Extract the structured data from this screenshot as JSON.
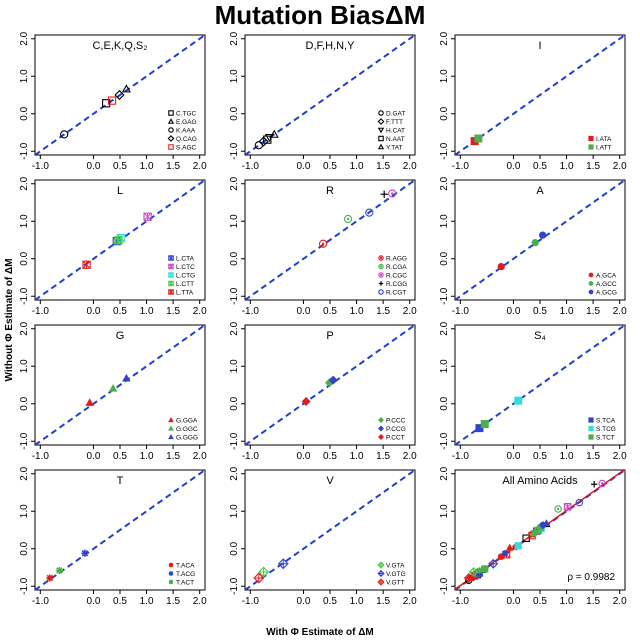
{
  "figure": {
    "title": "Mutation BiasΔM",
    "xlabel": "With Φ Estimate of ΔM",
    "ylabel": "Without Φ Estimate of ΔM"
  },
  "colors": {
    "diagonal": "#1f3fd0",
    "regression": "#e01010"
  },
  "chart_data": [
    {
      "type": "scatter",
      "title": "C,E,K,Q,S₂",
      "xlim": [
        -1.1,
        2.1
      ],
      "ylim": [
        -1.1,
        2.1
      ],
      "xticks": [
        "-1.0",
        "0.0",
        "0.5",
        "1.0",
        "1.5",
        "2.0"
      ],
      "yticks": [
        "-1.0",
        "0.0",
        "1.0",
        "2.0"
      ],
      "series": [
        {
          "name": "C.TGC",
          "marker": "square",
          "color": "#000000",
          "x": [
            0.24
          ],
          "y": [
            0.28
          ]
        },
        {
          "name": "E.GAG",
          "marker": "triangle",
          "color": "#000000",
          "x": [
            0.62
          ],
          "y": [
            0.66
          ]
        },
        {
          "name": "K.AAA",
          "marker": "circle",
          "color": "#000000",
          "x": [
            -0.55
          ],
          "y": [
            -0.55
          ]
        },
        {
          "name": "Q.CAG",
          "marker": "diamond",
          "color": "#000000",
          "x": [
            0.49
          ],
          "y": [
            0.5
          ]
        },
        {
          "name": "S.AGC",
          "marker": "square",
          "color": "#e41a1c",
          "x": [
            0.35
          ],
          "y": [
            0.35
          ]
        }
      ]
    },
    {
      "type": "scatter",
      "title": "D,F,H,N,Y",
      "xlim": [
        -1.1,
        2.1
      ],
      "ylim": [
        -1.1,
        2.1
      ],
      "xticks": [
        "-1.0",
        "0.0",
        "0.5",
        "1.0",
        "1.5",
        "2.0"
      ],
      "yticks": [
        "-1.0",
        "0.0",
        "1.0",
        "2.0"
      ],
      "series": [
        {
          "name": "D.GAT",
          "marker": "circle",
          "color": "#000000",
          "x": [
            -0.84
          ],
          "y": [
            -0.84
          ]
        },
        {
          "name": "F.TTT",
          "marker": "diamond",
          "color": "#000000",
          "x": [
            -0.75
          ],
          "y": [
            -0.74
          ]
        },
        {
          "name": "H.CAT",
          "marker": "triangle-down",
          "color": "#000000",
          "x": [
            -0.64
          ],
          "y": [
            -0.63
          ]
        },
        {
          "name": "N.AAT",
          "marker": "square",
          "color": "#000000",
          "x": [
            -0.68
          ],
          "y": [
            -0.69
          ]
        },
        {
          "name": "Y.TAT",
          "marker": "triangle",
          "color": "#000000",
          "x": [
            -0.55
          ],
          "y": [
            -0.55
          ]
        }
      ]
    },
    {
      "type": "scatter",
      "title": "I",
      "xlim": [
        -1.1,
        2.1
      ],
      "ylim": [
        -1.1,
        2.1
      ],
      "xticks": [
        "-1.0",
        "0.0",
        "0.5",
        "1.0",
        "1.5",
        "2.0"
      ],
      "yticks": [
        "-1.0",
        "0.0",
        "1.0",
        "2.0"
      ],
      "series": [
        {
          "name": "I.ATA",
          "marker": "square-filled",
          "color": "#e41a1c",
          "x": [
            -0.73
          ],
          "y": [
            -0.73
          ]
        },
        {
          "name": "I.ATT",
          "marker": "square-filled",
          "color": "#4daf4a",
          "x": [
            -0.66
          ],
          "y": [
            -0.66
          ]
        }
      ]
    },
    {
      "type": "scatter",
      "title": "L",
      "xlim": [
        -1.1,
        2.1
      ],
      "ylim": [
        -1.1,
        2.1
      ],
      "xticks": [
        "-1.0",
        "0.0",
        "0.5",
        "1.0",
        "1.5",
        "2.0"
      ],
      "yticks": [
        "-1.0",
        "0.0",
        "1.0",
        "2.0"
      ],
      "series": [
        {
          "name": "L.CTA",
          "marker": "asterisk-box",
          "color": "#3344cc",
          "x": [
            0.44
          ],
          "y": [
            0.47
          ]
        },
        {
          "name": "L.CTC",
          "marker": "asterisk-box",
          "color": "#cc44cc",
          "x": [
            1.02
          ],
          "y": [
            1.12
          ]
        },
        {
          "name": "L.CTG",
          "marker": "asterisk-box",
          "color": "#33dddd",
          "x": [
            0.52
          ],
          "y": [
            0.55
          ]
        },
        {
          "name": "L.CTT",
          "marker": "asterisk-box",
          "color": "#44cc44",
          "x": [
            0.47
          ],
          "y": [
            0.49
          ]
        },
        {
          "name": "L.TTA",
          "marker": "asterisk-box",
          "color": "#e41a1c",
          "x": [
            -0.13
          ],
          "y": [
            -0.16
          ]
        }
      ]
    },
    {
      "type": "scatter",
      "title": "R",
      "xlim": [
        -1.1,
        2.1
      ],
      "ylim": [
        -1.1,
        2.1
      ],
      "xticks": [
        "-1.0",
        "0.0",
        "0.5",
        "1.0",
        "1.5",
        "2.0"
      ],
      "yticks": [
        "-1.0",
        "0.0",
        "1.0",
        "2.0"
      ],
      "series": [
        {
          "name": "R.AGG",
          "marker": "circle-dot",
          "color": "#e41a1c",
          "x": [
            0.37
          ],
          "y": [
            0.4
          ]
        },
        {
          "name": "R.CGA",
          "marker": "circle-dot",
          "color": "#4daf4a",
          "x": [
            0.84
          ],
          "y": [
            1.06
          ]
        },
        {
          "name": "R.CGC",
          "marker": "circle-dot",
          "color": "#cc44cc",
          "x": [
            1.67
          ],
          "y": [
            1.74
          ]
        },
        {
          "name": "R.CGG",
          "marker": "plus",
          "color": "#000000",
          "x": [
            1.52
          ],
          "y": [
            1.72
          ]
        },
        {
          "name": "R.CGT",
          "marker": "circle",
          "color": "#3344cc",
          "x": [
            1.24
          ],
          "y": [
            1.23
          ]
        }
      ]
    },
    {
      "type": "scatter",
      "title": "A",
      "xlim": [
        -1.1,
        2.1
      ],
      "ylim": [
        -1.1,
        2.1
      ],
      "xticks": [
        "-1.0",
        "0.0",
        "0.5",
        "1.0",
        "1.5",
        "2.0"
      ],
      "yticks": [
        "-1.0",
        "0.0",
        "1.0",
        "2.0"
      ],
      "series": [
        {
          "name": "A.GCA",
          "marker": "dot",
          "color": "#e41a1c",
          "x": [
            -0.23
          ],
          "y": [
            -0.21
          ]
        },
        {
          "name": "A.GCC",
          "marker": "dot",
          "color": "#4daf4a",
          "x": [
            0.41
          ],
          "y": [
            0.43
          ]
        },
        {
          "name": "A.GCG",
          "marker": "dot",
          "color": "#3344cc",
          "x": [
            0.55
          ],
          "y": [
            0.63
          ]
        }
      ]
    },
    {
      "type": "scatter",
      "title": "G",
      "xlim": [
        -1.1,
        2.1
      ],
      "ylim": [
        -1.1,
        2.1
      ],
      "xticks": [
        "-1.0",
        "0.0",
        "0.5",
        "1.0",
        "1.5",
        "2.0"
      ],
      "yticks": [
        "-1.0",
        "0.0",
        "1.0",
        "2.0"
      ],
      "series": [
        {
          "name": "G.GGA",
          "marker": "triangle-filled",
          "color": "#e41a1c",
          "x": [
            -0.07
          ],
          "y": [
            0.03
          ]
        },
        {
          "name": "G.GGC",
          "marker": "triangle-filled",
          "color": "#4daf4a",
          "x": [
            0.37
          ],
          "y": [
            0.41
          ]
        },
        {
          "name": "G.GGG",
          "marker": "triangle-filled",
          "color": "#3344cc",
          "x": [
            0.62
          ],
          "y": [
            0.68
          ]
        }
      ]
    },
    {
      "type": "scatter",
      "title": "P",
      "xlim": [
        -1.1,
        2.1
      ],
      "ylim": [
        -1.1,
        2.1
      ],
      "xticks": [
        "-1.0",
        "0.0",
        "0.5",
        "1.0",
        "1.5",
        "2.0"
      ],
      "yticks": [
        "-1.0",
        "0.0",
        "1.0",
        "2.0"
      ],
      "series": [
        {
          "name": "P.CCC",
          "marker": "diamond-filled",
          "color": "#4daf4a",
          "x": [
            0.49
          ],
          "y": [
            0.56
          ]
        },
        {
          "name": "P.CCG",
          "marker": "diamond-filled",
          "color": "#3344cc",
          "x": [
            0.56
          ],
          "y": [
            0.63
          ]
        },
        {
          "name": "P.CCT",
          "marker": "diamond-filled",
          "color": "#e41a1c",
          "x": [
            0.05
          ],
          "y": [
            0.06
          ]
        }
      ]
    },
    {
      "type": "scatter",
      "title": "S₄",
      "xlim": [
        -1.1,
        2.1
      ],
      "ylim": [
        -1.1,
        2.1
      ],
      "xticks": [
        "-1.0",
        "0.0",
        "0.5",
        "1.0",
        "1.5",
        "2.0"
      ],
      "yticks": [
        "-1.0",
        "0.0",
        "1.0",
        "2.0"
      ],
      "series": [
        {
          "name": "S.TCA",
          "marker": "square-filled",
          "color": "#3344cc",
          "x": [
            -0.64
          ],
          "y": [
            -0.65
          ]
        },
        {
          "name": "S.TCG",
          "marker": "square-filled",
          "color": "#33dddd",
          "x": [
            0.09
          ],
          "y": [
            0.08
          ]
        },
        {
          "name": "S.TCT",
          "marker": "square-filled",
          "color": "#4daf4a",
          "x": [
            -0.54
          ],
          "y": [
            -0.54
          ]
        }
      ]
    },
    {
      "type": "scatter",
      "title": "T",
      "xlim": [
        -1.1,
        2.1
      ],
      "ylim": [
        -1.1,
        2.1
      ],
      "xticks": [
        "-1.0",
        "0.0",
        "0.5",
        "1.0",
        "1.5",
        "2.0"
      ],
      "yticks": [
        "-1.0",
        "0.0",
        "1.0",
        "2.0"
      ],
      "series": [
        {
          "name": "T.ACA",
          "marker": "star",
          "color": "#e41a1c",
          "x": [
            -0.82
          ],
          "y": [
            -0.78
          ]
        },
        {
          "name": "T.ACG",
          "marker": "star",
          "color": "#3344cc",
          "x": [
            -0.16
          ],
          "y": [
            -0.12
          ]
        },
        {
          "name": "T.ACT",
          "marker": "star",
          "color": "#4daf4a",
          "x": [
            -0.64
          ],
          "y": [
            -0.58
          ]
        }
      ]
    },
    {
      "type": "scatter",
      "title": "V",
      "xlim": [
        -1.1,
        2.1
      ],
      "ylim": [
        -1.1,
        2.1
      ],
      "xticks": [
        "-1.0",
        "0.0",
        "0.5",
        "1.0",
        "1.5",
        "2.0"
      ],
      "yticks": [
        "-1.0",
        "0.0",
        "1.0",
        "2.0"
      ],
      "series": [
        {
          "name": "V.GTA",
          "marker": "diamond-plus",
          "color": "#44cc44",
          "x": [
            -0.75
          ],
          "y": [
            -0.62
          ]
        },
        {
          "name": "V.GTG",
          "marker": "diamond-plus",
          "color": "#3344cc",
          "x": [
            -0.38
          ],
          "y": [
            -0.4
          ]
        },
        {
          "name": "V.GTT",
          "marker": "diamond-plus",
          "color": "#e41a1c",
          "x": [
            -0.84
          ],
          "y": [
            -0.78
          ]
        }
      ]
    },
    {
      "type": "scatter",
      "title": "All Amino Acids",
      "xlim": [
        -1.1,
        2.1
      ],
      "ylim": [
        -1.1,
        2.1
      ],
      "xticks": [
        "-1.0",
        "0.0",
        "0.5",
        "1.0",
        "1.5",
        "2.0"
      ],
      "yticks": [
        "-1.0",
        "0.0",
        "1.0",
        "2.0"
      ],
      "annotation": "ρ = 0.9982",
      "regression": {
        "slope": 1.0,
        "intercept": 0.02
      },
      "combine_all": true,
      "series": []
    }
  ]
}
